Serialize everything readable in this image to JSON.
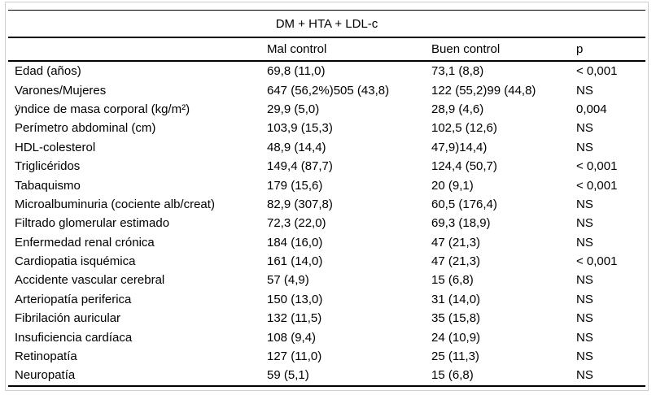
{
  "table": {
    "title": "DM + HTA + LDL-c",
    "columns": [
      "Mal control",
      "Buen control",
      "p"
    ],
    "rows": [
      {
        "label": "Edad (años)",
        "mal": "69,8 (11,0)",
        "buen": "73,1 (8,8)",
        "p": "< 0,001"
      },
      {
        "label": "Varones/Mujeres",
        "mal": "647 (56,2%)505 (43,8)",
        "buen": "122 (55,2)99 (44,8)",
        "p": "NS"
      },
      {
        "label": "ÿndice de masa corporal (kg/m²)",
        "mal": "29,9 (5,0)",
        "buen": "28,9 (4,6)",
        "p": "0,004"
      },
      {
        "label": "Perímetro abdominal (cm)",
        "mal": "103,9 (15,3)",
        "buen": "102,5 (12,6)",
        "p": "NS"
      },
      {
        "label": "HDL-colesterol",
        "mal": "48,9 (14,4)",
        "buen": "47,9)14,4)",
        "p": "NS"
      },
      {
        "label": "Triglicéridos",
        "mal": "149,4 (87,7)",
        "buen": "124,4 (50,7)",
        "p": "< 0,001"
      },
      {
        "label": "Tabaquismo",
        "mal": "179 (15,6)",
        "buen": "20 (9,1)",
        "p": "< 0,001"
      },
      {
        "label": "Microalbuminuria (cociente alb/creat)",
        "mal": "82,9 (307,8)",
        "buen": "60,5 (176,4)",
        "p": "NS"
      },
      {
        "label": "Filtrado glomerular estimado",
        "mal": "72,3 (22,0)",
        "buen": "69,3 (18,9)",
        "p": "NS"
      },
      {
        "label": "Enfermedad renal crónica",
        "mal": "184 (16,0)",
        "buen": "47 (21,3)",
        "p": "NS"
      },
      {
        "label": "Cardiopatia isquémica",
        "mal": "161 (14,0)",
        "buen": "47 (21,3)",
        "p": "< 0,001"
      },
      {
        "label": "Accidente vascular cerebral",
        "mal": "57 (4,9)",
        "buen": "15 (6,8)",
        "p": "NS"
      },
      {
        "label": "Arteriopatía periferica",
        "mal": "150 (13,0)",
        "buen": "31 (14,0)",
        "p": "NS"
      },
      {
        "label": "Fibrilación auricular",
        "mal": "132 (11,5)",
        "buen": "35 (15,8)",
        "p": "NS"
      },
      {
        "label": "Insuficiencia cardíaca",
        "mal": "108 (9,4)",
        "buen": "24 (10,9)",
        "p": "NS"
      },
      {
        "label": "Retinopatía",
        "mal": "127 (11,0)",
        "buen": "25 (11,3)",
        "p": "NS"
      },
      {
        "label": "Neuropatía",
        "mal": "59 (5,1)",
        "buen": "15 (6,8)",
        "p": "NS"
      }
    ]
  }
}
